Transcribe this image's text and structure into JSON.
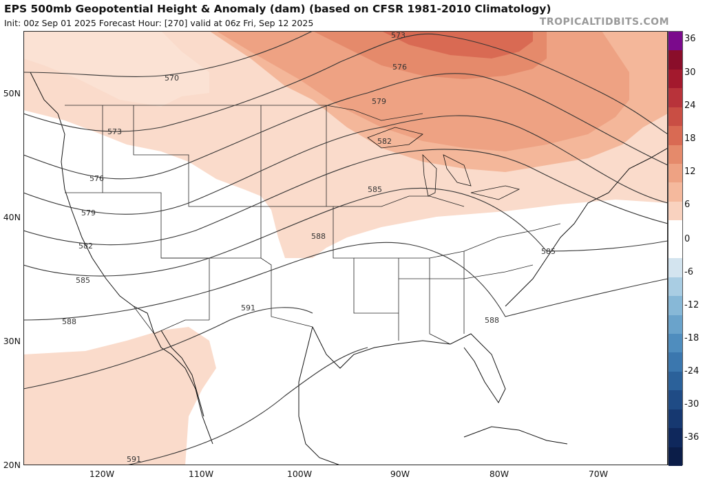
{
  "header": {
    "title": "EPS 500mb Geopotential Height & Anomaly (dam) (based on CFSR 1981-2010 Climatology)",
    "subtitle": "Init: 00z Sep 01 2025   Forecast Hour: [270]   valid at 06z Fri, Sep 12 2025",
    "watermark": "TROPICALTIDBITS.COM"
  },
  "axes": {
    "lat_labels": [
      "50N",
      "40N",
      "30N",
      "20N"
    ],
    "lon_labels": [
      "120W",
      "110W",
      "100W",
      "90W",
      "80W",
      "70W"
    ]
  },
  "contours": {
    "labels": [
      "570",
      "573",
      "576",
      "579",
      "582",
      "585",
      "588",
      "591",
      "573",
      "576",
      "579",
      "582",
      "585",
      "588",
      "591",
      "585",
      "588",
      "591"
    ]
  },
  "colorbar": {
    "ticks": [
      "36",
      "30",
      "24",
      "18",
      "12",
      "6",
      "0",
      "-6",
      "-12",
      "-18",
      "-24",
      "-30",
      "-36"
    ],
    "colors": [
      "#7b0a8c",
      "#8a0e2a",
      "#a3192d",
      "#b8333a",
      "#c94e44",
      "#d96a53",
      "#e58a6b",
      "#eea283",
      "#f5b99d",
      "#f9d2bf",
      "#ffffff",
      "#ffffff",
      "#d3e4ef",
      "#a9cde3",
      "#87b8d7",
      "#6aa3cb",
      "#4f8dbe",
      "#3b77ae",
      "#2b619a",
      "#1f4b85",
      "#163870",
      "#0f285c",
      "#0b1d48"
    ]
  }
}
